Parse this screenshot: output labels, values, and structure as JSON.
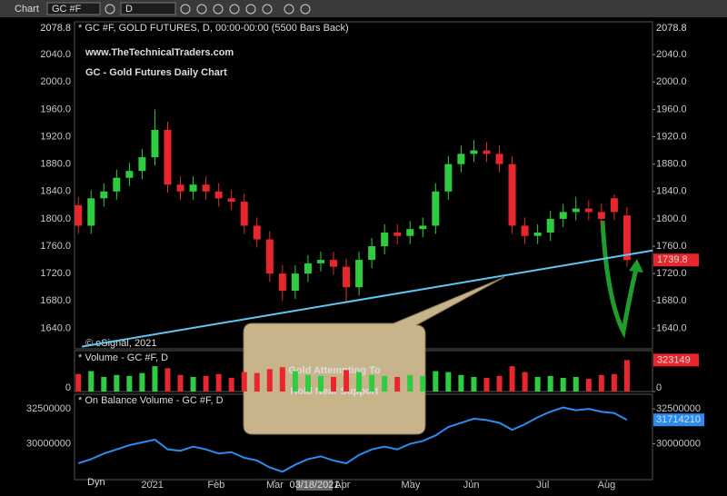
{
  "toolbar": {
    "app": "Chart",
    "symbol": "GC #F",
    "interval": "D"
  },
  "dyn_label": "Dyn",
  "chart_data": [
    {
      "type": "candlestick",
      "site": "www.TheTechnicalTraders.com",
      "title": "GC - Gold Futures Daily Chart",
      "info": "* GC #F, GOLD FUTURES, D, 00:00-00:00 (5500 Bars Back)",
      "scale_top": 2078.8,
      "copyright": "© eSignal, 2021",
      "cursor_label": "03/18/2021",
      "up_color": "#2ecc40",
      "down_color": "#e8262d",
      "x": [
        0,
        1,
        2,
        3,
        4,
        5,
        6,
        7,
        8,
        9,
        10,
        11,
        12,
        13,
        14,
        15,
        16,
        17,
        18,
        19,
        20,
        21,
        22,
        23,
        24,
        25,
        26,
        27,
        28,
        29,
        30,
        31,
        32,
        33,
        34,
        35,
        36,
        37,
        38,
        39,
        40,
        41,
        42,
        43
      ],
      "open": [
        1820,
        1790,
        1830,
        1840,
        1860,
        1870,
        1890,
        1930,
        1850,
        1840,
        1850,
        1840,
        1830,
        1825,
        1790,
        1770,
        1720,
        1695,
        1720,
        1735,
        1740,
        1730,
        1700,
        1740,
        1760,
        1780,
        1775,
        1785,
        1790,
        1840,
        1880,
        1895,
        1900,
        1895,
        1880,
        1790,
        1775,
        1780,
        1800,
        1810,
        1815,
        1810,
        1830,
        1805
      ],
      "high": [
        1832,
        1842,
        1852,
        1872,
        1882,
        1902,
        1960,
        1942,
        1862,
        1862,
        1862,
        1852,
        1842,
        1837,
        1802,
        1782,
        1732,
        1732,
        1747,
        1752,
        1752,
        1742,
        1752,
        1772,
        1792,
        1792,
        1797,
        1802,
        1852,
        1892,
        1907,
        1915,
        1912,
        1907,
        1892,
        1802,
        1792,
        1812,
        1822,
        1832,
        1827,
        1822,
        1836,
        1817
      ],
      "low": [
        1778,
        1778,
        1818,
        1828,
        1848,
        1858,
        1878,
        1838,
        1828,
        1828,
        1828,
        1818,
        1813,
        1778,
        1758,
        1708,
        1680,
        1683,
        1708,
        1723,
        1718,
        1677,
        1688,
        1728,
        1748,
        1763,
        1763,
        1773,
        1778,
        1828,
        1868,
        1883,
        1883,
        1868,
        1778,
        1763,
        1763,
        1768,
        1788,
        1798,
        1798,
        1788,
        1798,
        1730
      ],
      "close": [
        1790,
        1830,
        1840,
        1860,
        1870,
        1890,
        1930,
        1850,
        1840,
        1850,
        1840,
        1830,
        1825,
        1790,
        1770,
        1720,
        1695,
        1720,
        1735,
        1740,
        1730,
        1700,
        1740,
        1760,
        1780,
        1775,
        1785,
        1790,
        1840,
        1880,
        1895,
        1900,
        1895,
        1880,
        1790,
        1775,
        1780,
        1800,
        1810,
        1815,
        1810,
        1800,
        1810,
        1739.8
      ],
      "xlim": [
        -0.3,
        45
      ],
      "xticks": [
        {
          "value": 5.8,
          "label": "2021"
        },
        {
          "value": 10.8,
          "label": "Feb"
        },
        {
          "value": 15.4,
          "label": "Mar"
        },
        {
          "value": 20.7,
          "label": "Apr"
        },
        {
          "value": 26.05,
          "label": "May"
        },
        {
          "value": 30.8,
          "label": "Jun"
        },
        {
          "value": 36.4,
          "label": "Jul"
        },
        {
          "value": 41.4,
          "label": "Aug"
        }
      ],
      "ylim": [
        1610,
        2088
      ],
      "yticks": [
        {
          "value": 1640,
          "label": "1640.0"
        },
        {
          "value": 1680,
          "label": "1680.0"
        },
        {
          "value": 1720,
          "label": "1720.0"
        },
        {
          "value": 1760,
          "label": "1760.0"
        },
        {
          "value": 1800,
          "label": "1800.0"
        },
        {
          "value": 1840,
          "label": "1840.0"
        },
        {
          "value": 1880,
          "label": "1880.0"
        },
        {
          "value": 1920,
          "label": "1920.0"
        },
        {
          "value": 1960,
          "label": "1960.0"
        },
        {
          "value": 2000,
          "label": "2000.0"
        },
        {
          "value": 2040,
          "label": "2040.0"
        }
      ],
      "trendline": {
        "x": [
          0.27,
          45
        ],
        "y": [
          1613.2,
          1753.7
        ],
        "color": "#5bc8f5"
      },
      "annotations": [
        "Gold Attempting To",
        "Hold Near Support"
      ]
    },
    {
      "type": "bar",
      "title": "* Volume - GC #F, D",
      "values": [
        180000,
        210000,
        150000,
        170000,
        160000,
        190000,
        260000,
        240000,
        170000,
        150000,
        160000,
        180000,
        140000,
        200000,
        190000,
        230000,
        250000,
        210000,
        170000,
        160000,
        150000,
        220000,
        200000,
        170000,
        160000,
        150000,
        170000,
        160000,
        210000,
        200000,
        170000,
        150000,
        140000,
        160000,
        260000,
        200000,
        150000,
        160000,
        140000,
        150000,
        130000,
        170000,
        180000,
        323149
      ],
      "ylim": [
        0,
        420000
      ],
      "yticks": [
        0
      ]
    },
    {
      "type": "line",
      "title": "* On Balance Volume - GC #F, D",
      "color": "#2a8cf0",
      "values": [
        28600000,
        28900000,
        29300000,
        29600000,
        29900000,
        30100000,
        30300000,
        29600000,
        29500000,
        29800000,
        29600000,
        29300000,
        29400000,
        29000000,
        28800000,
        28300000,
        28000000,
        28500000,
        28900000,
        29100000,
        28800000,
        28600000,
        29200000,
        29600000,
        29800000,
        29600000,
        30000000,
        30200000,
        30600000,
        31200000,
        31500000,
        31800000,
        31700000,
        31500000,
        31000000,
        31400000,
        31900000,
        32300000,
        32600000,
        32400000,
        32500000,
        32300000,
        32200000,
        31714210
      ],
      "ylim": [
        27430000,
        33550000
      ],
      "yticks": [
        30000000,
        32500000
      ]
    }
  ]
}
